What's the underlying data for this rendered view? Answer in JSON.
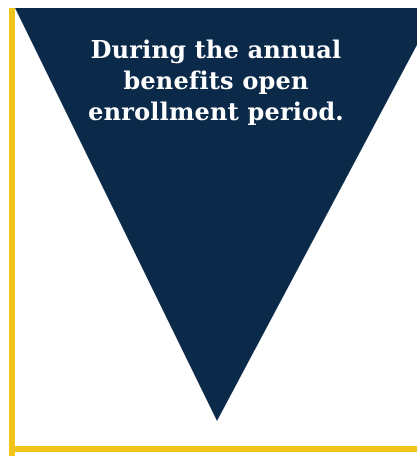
{
  "callout": {
    "text": "During the annual benefits open enrollment period."
  },
  "colors": {
    "triangle": "#0b2a4a",
    "frame": "#f0c419",
    "background": "#ffffff",
    "text": "#ffffff"
  }
}
